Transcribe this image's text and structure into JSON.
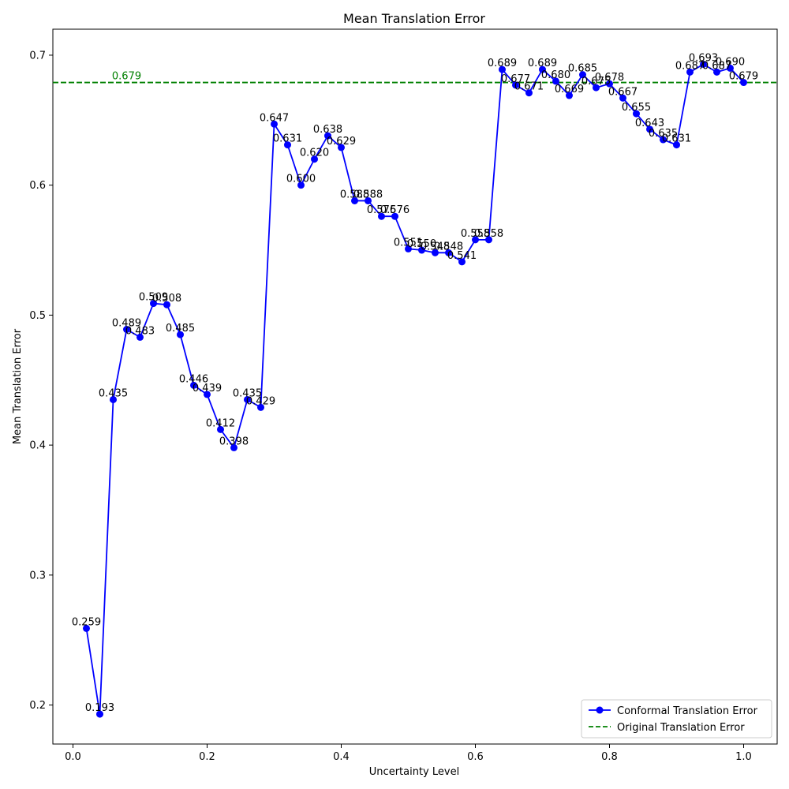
{
  "chart_data": {
    "type": "line",
    "title": "Mean Translation Error",
    "xlabel": "Uncertainty Level",
    "ylabel": "Mean Translation Error",
    "xlim": [
      -0.03,
      1.05
    ],
    "ylim": [
      0.17,
      0.72
    ],
    "xticks": [
      0.0,
      0.2,
      0.4,
      0.6,
      0.8,
      1.0
    ],
    "xtick_labels": [
      "0.0",
      "0.2",
      "0.4",
      "0.6",
      "0.8",
      "1.0"
    ],
    "yticks": [
      0.2,
      0.3,
      0.4,
      0.5,
      0.6,
      0.7
    ],
    "ytick_labels": [
      "0.2",
      "0.3",
      "0.4",
      "0.5",
      "0.6",
      "0.7"
    ],
    "grid": false,
    "legend_position": "bottom-right",
    "series": [
      {
        "name": "Conformal Translation Error",
        "color": "#0000ff",
        "marker": "circle",
        "x": [
          0.02,
          0.04,
          0.06,
          0.08,
          0.1,
          0.12,
          0.14,
          0.16,
          0.18,
          0.2,
          0.22,
          0.24,
          0.26,
          0.28,
          0.3,
          0.32,
          0.34,
          0.36,
          0.38,
          0.4,
          0.42,
          0.44,
          0.46,
          0.48,
          0.5,
          0.52,
          0.54,
          0.56,
          0.58,
          0.6,
          0.62,
          0.64,
          0.66,
          0.68,
          0.7,
          0.72,
          0.74,
          0.76,
          0.78,
          0.8,
          0.82,
          0.84,
          0.86,
          0.88,
          0.9,
          0.92,
          0.94,
          0.96,
          0.98,
          1.0
        ],
        "y": [
          0.259,
          0.193,
          0.435,
          0.489,
          0.483,
          0.509,
          0.508,
          0.485,
          0.446,
          0.439,
          0.412,
          0.398,
          0.435,
          0.429,
          0.647,
          0.631,
          0.6,
          0.62,
          0.638,
          0.629,
          0.588,
          0.588,
          0.576,
          0.576,
          0.551,
          0.55,
          0.548,
          0.548,
          0.541,
          0.558,
          0.558,
          0.689,
          0.677,
          0.671,
          0.689,
          0.68,
          0.669,
          0.685,
          0.675,
          0.678,
          0.667,
          0.655,
          0.643,
          0.635,
          0.631,
          0.687,
          0.693,
          0.687,
          0.69,
          0.679
        ],
        "labels": [
          "0.259",
          "0.193",
          "0.435",
          "0.489",
          "0.483",
          "0.509",
          "0.508",
          "0.485",
          "0.446",
          "0.439",
          "0.412",
          "0.398",
          "0.435",
          "0.429",
          "0.647",
          "0.631",
          "0.600",
          "0.620",
          "0.638",
          "0.629",
          "0.588",
          "0.588",
          "0.576",
          "0.576",
          "0.551",
          "0.550",
          "0.548",
          "0.548",
          "0.541",
          "0.558",
          "0.558",
          "0.689",
          "0.677",
          "0.671",
          "0.689",
          "0.680",
          "0.669",
          "0.685",
          "0.675",
          "0.678",
          "0.667",
          "0.655",
          "0.643",
          "0.635",
          "0.631",
          "0.687",
          "0.693",
          "0.687",
          "0.690",
          "0.679"
        ]
      }
    ],
    "reference_line": {
      "name": "Original Translation Error",
      "value": 0.679,
      "label": "0.679",
      "color": "#008000",
      "style": "dashed"
    }
  }
}
